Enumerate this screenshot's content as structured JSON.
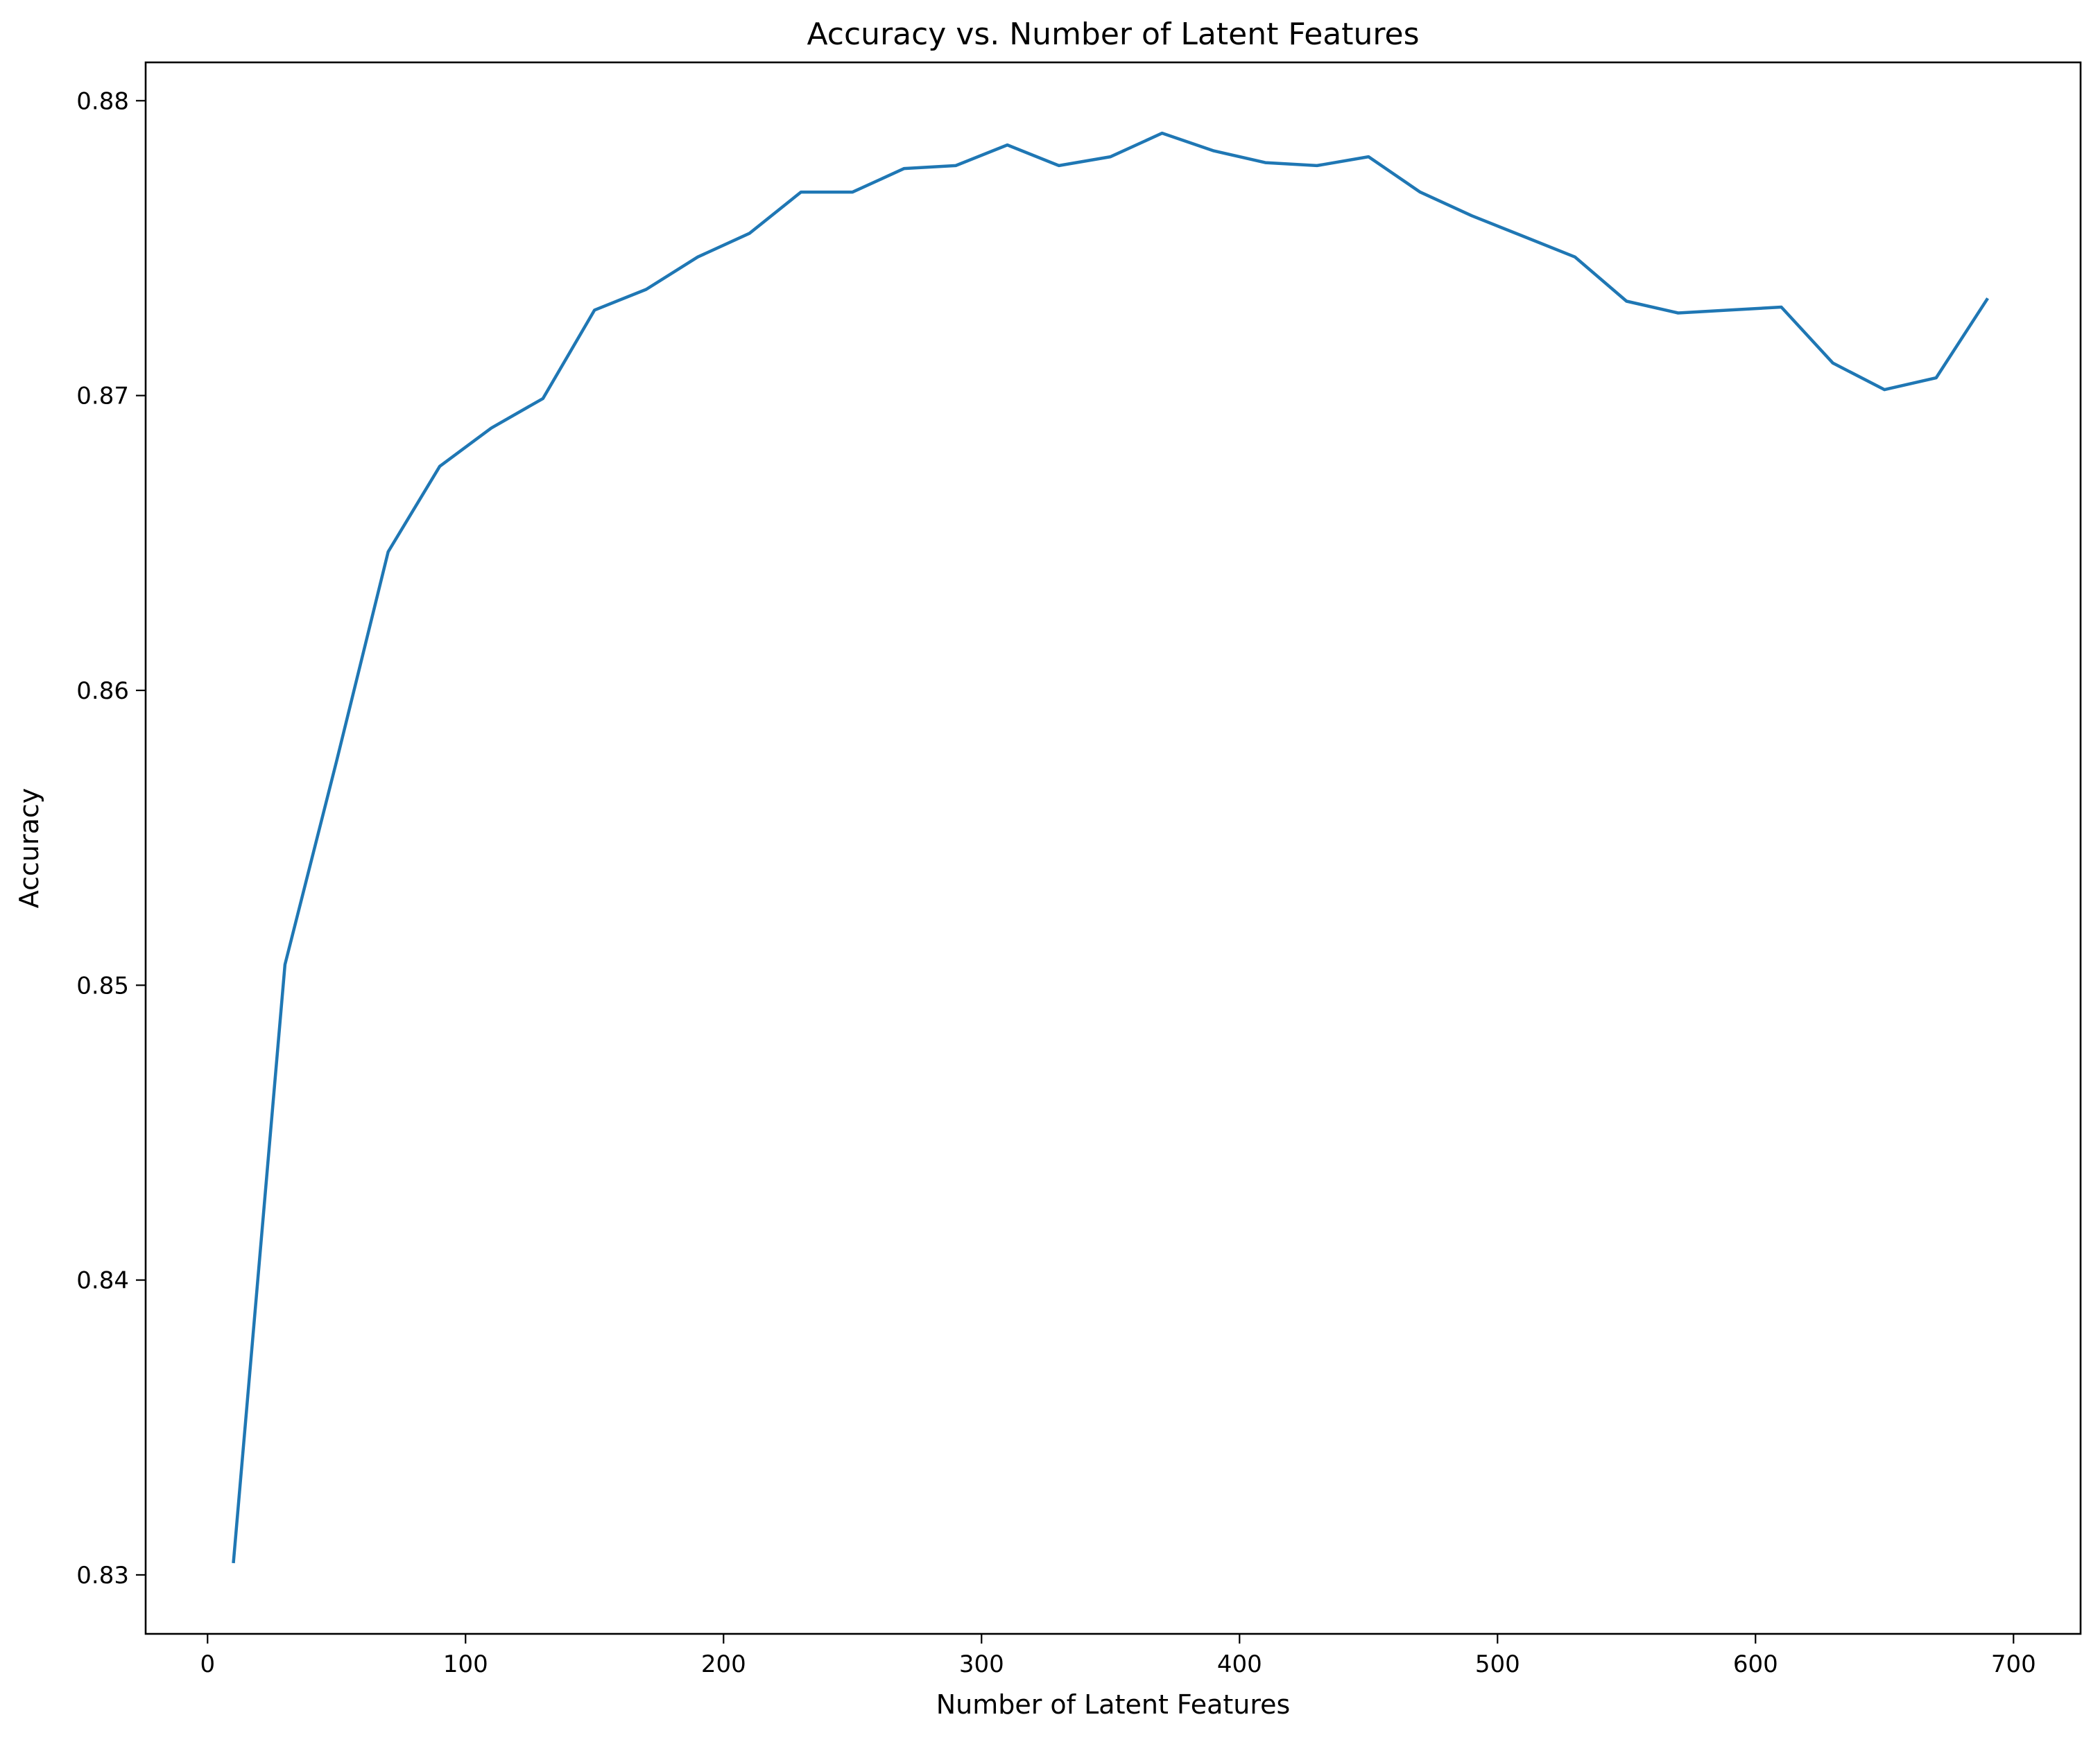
{
  "chart_data": {
    "type": "line",
    "title": "Accuracy vs. Number of Latent Features",
    "xlabel": "Number of Latent Features",
    "ylabel": "Accuracy",
    "xlim": [
      -24,
      726
    ],
    "ylim": [
      0.828,
      0.8813
    ],
    "x_ticks": [
      0,
      100,
      200,
      300,
      400,
      500,
      600,
      700
    ],
    "x_tick_labels": [
      "0",
      "100",
      "200",
      "300",
      "400",
      "500",
      "600",
      "700"
    ],
    "y_ticks": [
      0.83,
      0.84,
      0.85,
      0.86,
      0.87,
      0.88
    ],
    "y_tick_labels": [
      "0.83",
      "0.84",
      "0.85",
      "0.86",
      "0.87",
      "0.88"
    ],
    "grid": false,
    "legend": false,
    "colors": {
      "series": "#1f77b4",
      "axes": "#000000",
      "background": "#ffffff"
    },
    "series": [
      {
        "x": [
          10,
          30,
          50,
          70,
          90,
          110,
          130,
          150,
          170,
          190,
          210,
          230,
          250,
          270,
          290,
          310,
          330,
          350,
          370,
          390,
          410,
          430,
          450,
          470,
          490,
          510,
          530,
          550,
          570,
          590,
          610,
          630,
          650,
          670,
          690
        ],
        "values": [
          0.8304,
          0.8507,
          0.8576,
          0.8647,
          0.8676,
          0.8689,
          0.8699,
          0.8729,
          0.8736,
          0.8747,
          0.8755,
          0.8769,
          0.8769,
          0.8777,
          0.8778,
          0.8785,
          0.8778,
          0.8781,
          0.8789,
          0.8783,
          0.8779,
          0.8778,
          0.8781,
          0.8769,
          0.8761,
          0.8754,
          0.8747,
          0.8732,
          0.8728,
          0.8729,
          0.873,
          0.8711,
          0.8702,
          0.8706,
          0.8733
        ]
      }
    ]
  }
}
